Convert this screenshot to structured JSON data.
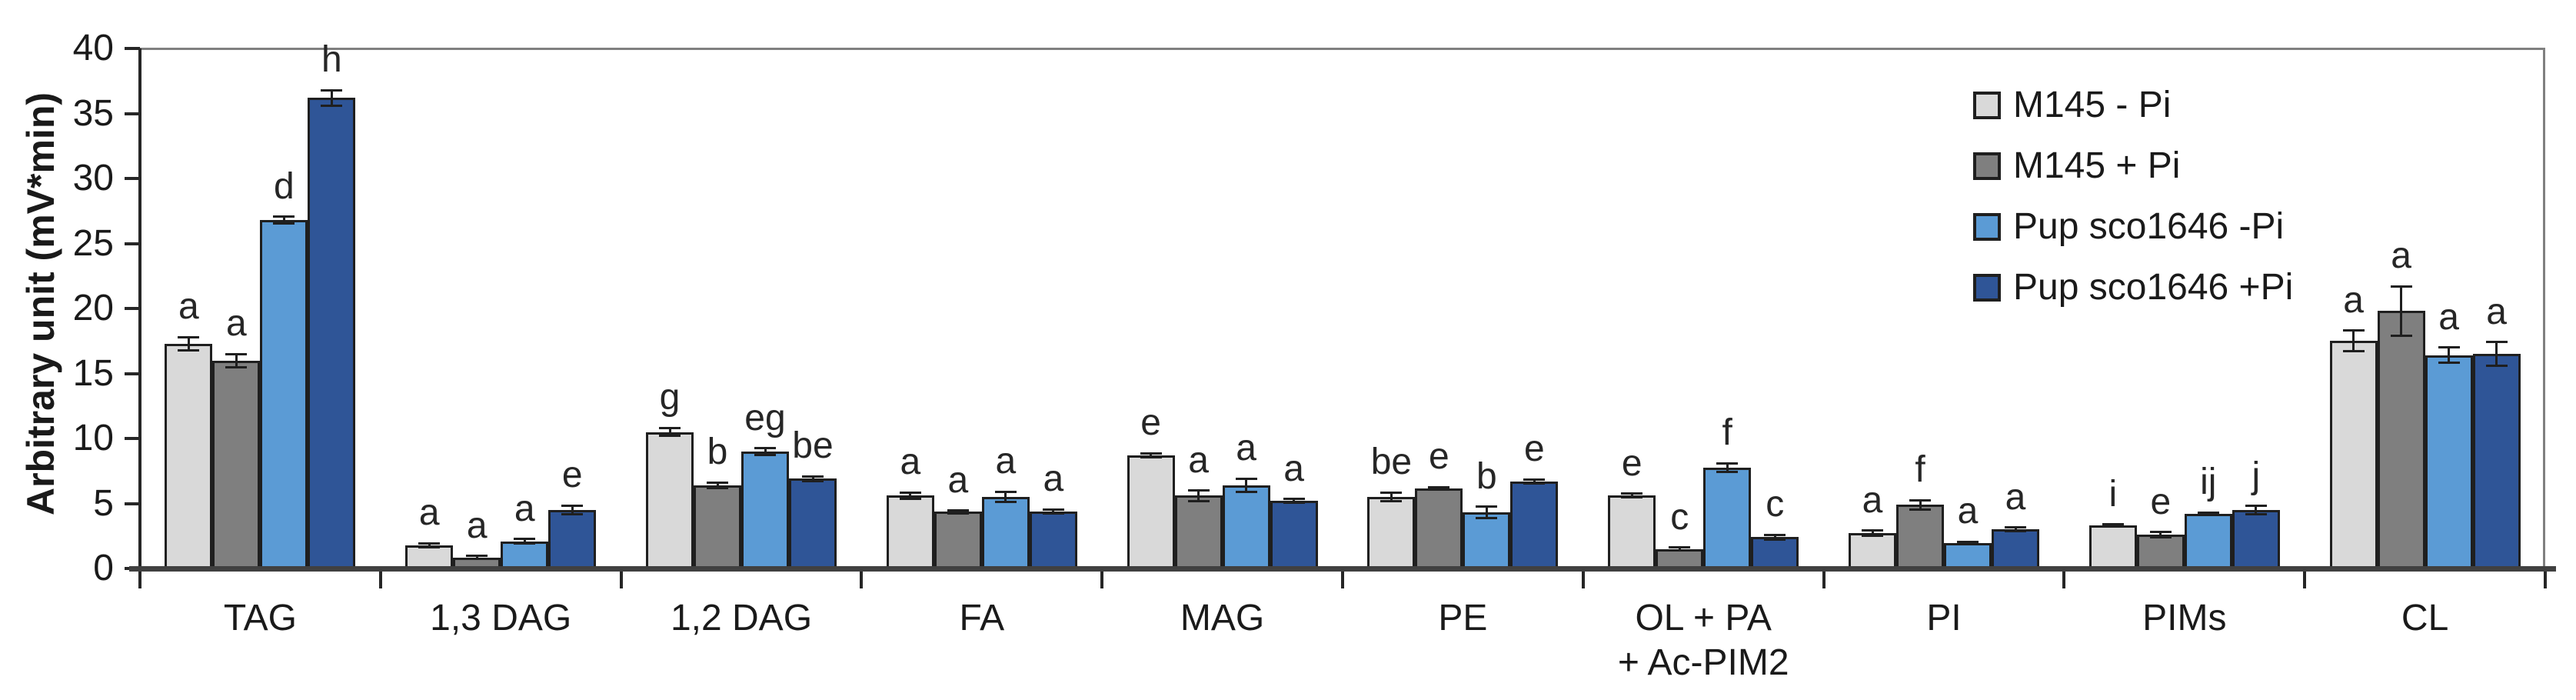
{
  "figure": {
    "y_axis_title": "Arbitrary unit (mV*min)"
  },
  "chart_data": {
    "type": "bar",
    "title": "",
    "xlabel": "",
    "ylabel": "Arbitrary unit (mV*min)",
    "ylim": [
      0,
      40
    ],
    "ytick_step": 5,
    "grid": false,
    "legend_position": "top-right-inside",
    "error_bars": true,
    "significance_letters": true,
    "categories": [
      "TAG",
      "1,3 DAG",
      "1,2 DAG",
      "FA",
      "MAG",
      "PE",
      "OL + PA\n+ Ac-PIM2",
      "PI",
      "PIMs",
      "CL"
    ],
    "series": [
      {
        "name": "M145 - Pi",
        "color": "#d9d9d9",
        "values": [
          17.3,
          1.8,
          10.5,
          5.6,
          8.7,
          5.5,
          5.6,
          2.7,
          3.3,
          17.5
        ],
        "errors": [
          0.5,
          0.15,
          0.3,
          0.25,
          0.15,
          0.35,
          0.15,
          0.2,
          0.1,
          0.8
        ],
        "letters": [
          "a",
          "a",
          "g",
          "a",
          "e",
          "be",
          "e",
          "a",
          "i",
          "a"
        ]
      },
      {
        "name": "M145 + Pi",
        "color": "#7f7f7f",
        "values": [
          16.0,
          0.85,
          6.4,
          4.35,
          5.6,
          6.15,
          1.5,
          4.9,
          2.6,
          19.8
        ],
        "errors": [
          0.5,
          0.1,
          0.2,
          0.1,
          0.4,
          0.1,
          0.1,
          0.35,
          0.2,
          1.9
        ],
        "letters": [
          "a",
          "a",
          "b",
          "a",
          "a",
          "e",
          "c",
          "f",
          "e",
          "a"
        ]
      },
      {
        "name": "Pup sco1646 -Pi",
        "color": "#5b9bd5",
        "values": [
          26.8,
          2.1,
          9.0,
          5.5,
          6.4,
          4.3,
          7.75,
          1.95,
          4.2,
          16.4
        ],
        "errors": [
          0.25,
          0.15,
          0.25,
          0.4,
          0.5,
          0.45,
          0.35,
          0.1,
          0.1,
          0.6
        ],
        "letters": [
          "d",
          "a",
          "eg",
          "a",
          "a",
          "b",
          "f",
          "a",
          "ij",
          "a"
        ]
      },
      {
        "name": "Pup sco1646 +Pi",
        "color": "#2f5597",
        "values": [
          36.2,
          4.5,
          6.9,
          4.4,
          5.2,
          6.7,
          2.4,
          3.0,
          4.5,
          16.5
        ],
        "errors": [
          0.6,
          0.35,
          0.2,
          0.15,
          0.15,
          0.15,
          0.2,
          0.15,
          0.3,
          0.9
        ],
        "letters": [
          "h",
          "e",
          "be",
          "a",
          "a",
          "e",
          "c",
          "a",
          "j",
          "a"
        ]
      }
    ]
  },
  "style_colors": {
    "bar_border": "#1f1f1f",
    "axis_dark": "#262626",
    "baseline": "#404040",
    "plot_border": "#808080",
    "text": "#1a1a1a"
  }
}
